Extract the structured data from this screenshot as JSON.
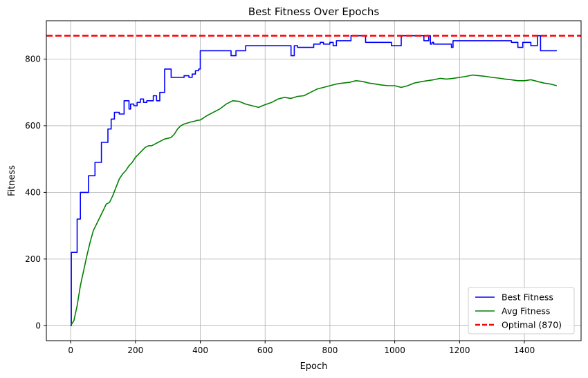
{
  "chart_data": {
    "type": "line",
    "title": "Best Fitness Over Epochs",
    "xlabel": "Epoch",
    "ylabel": "Fitness",
    "xlim": [
      -75,
      1575
    ],
    "ylim": [
      -45,
      915
    ],
    "xticks": [
      0,
      200,
      400,
      600,
      800,
      1000,
      1200,
      1400
    ],
    "yticks": [
      0,
      200,
      400,
      600,
      800
    ],
    "grid": true,
    "legend_position": "lower right",
    "series": [
      {
        "name": "Best Fitness",
        "color": "#0000ff",
        "style": "step",
        "x": [
          0,
          2,
          15,
          20,
          30,
          55,
          75,
          95,
          115,
          125,
          135,
          150,
          165,
          180,
          185,
          195,
          205,
          215,
          225,
          235,
          255,
          265,
          275,
          290,
          310,
          350,
          365,
          375,
          385,
          395,
          400,
          495,
          510,
          540,
          600,
          680,
          690,
          700,
          750,
          770,
          780,
          800,
          810,
          820,
          865,
          875,
          910,
          960,
          990,
          1020,
          1060,
          1090,
          1105,
          1110,
          1115,
          1120,
          1150,
          1175,
          1180,
          1200,
          1270,
          1360,
          1380,
          1395,
          1420,
          1440,
          1450,
          1500
        ],
        "y": [
          0,
          220,
          220,
          320,
          400,
          450,
          490,
          550,
          590,
          620,
          640,
          635,
          675,
          650,
          665,
          660,
          670,
          680,
          670,
          675,
          690,
          675,
          700,
          770,
          745,
          750,
          745,
          755,
          765,
          770,
          825,
          810,
          825,
          840,
          840,
          810,
          840,
          835,
          845,
          850,
          845,
          850,
          840,
          855,
          870,
          870,
          850,
          850,
          840,
          870,
          870,
          855,
          870,
          845,
          850,
          845,
          845,
          835,
          855,
          855,
          855,
          850,
          835,
          850,
          840,
          870,
          825,
          825
        ]
      },
      {
        "name": "Avg Fitness",
        "color": "#008000",
        "style": "line",
        "x": [
          0,
          10,
          20,
          30,
          40,
          50,
          60,
          70,
          80,
          90,
          100,
          110,
          120,
          130,
          140,
          150,
          160,
          170,
          180,
          190,
          200,
          210,
          220,
          230,
          240,
          250,
          260,
          270,
          280,
          290,
          300,
          310,
          320,
          330,
          340,
          350,
          360,
          370,
          380,
          390,
          400,
          420,
          440,
          460,
          480,
          500,
          520,
          540,
          560,
          580,
          600,
          620,
          640,
          660,
          680,
          700,
          720,
          740,
          760,
          780,
          800,
          820,
          840,
          860,
          880,
          900,
          920,
          940,
          960,
          980,
          1000,
          1020,
          1040,
          1060,
          1080,
          1100,
          1120,
          1140,
          1160,
          1180,
          1200,
          1220,
          1240,
          1260,
          1280,
          1300,
          1320,
          1340,
          1360,
          1380,
          1400,
          1420,
          1440,
          1460,
          1480,
          1500
        ],
        "y": [
          0,
          15,
          60,
          120,
          165,
          210,
          250,
          285,
          305,
          325,
          345,
          365,
          370,
          390,
          415,
          440,
          455,
          465,
          480,
          490,
          505,
          515,
          525,
          535,
          540,
          540,
          545,
          550,
          555,
          560,
          562,
          565,
          575,
          590,
          600,
          605,
          608,
          611,
          613,
          616,
          617,
          630,
          640,
          650,
          665,
          675,
          673,
          665,
          660,
          655,
          663,
          670,
          680,
          685,
          682,
          688,
          690,
          700,
          710,
          715,
          720,
          725,
          728,
          730,
          735,
          733,
          728,
          725,
          722,
          720,
          720,
          715,
          720,
          728,
          732,
          735,
          738,
          742,
          740,
          742,
          745,
          748,
          752,
          750,
          748,
          745,
          743,
          740,
          738,
          735,
          735,
          738,
          733,
          728,
          725,
          720
        ]
      },
      {
        "name": "Optimal (870)",
        "color": "#ff0000",
        "style": "hline",
        "value": 870
      }
    ]
  }
}
